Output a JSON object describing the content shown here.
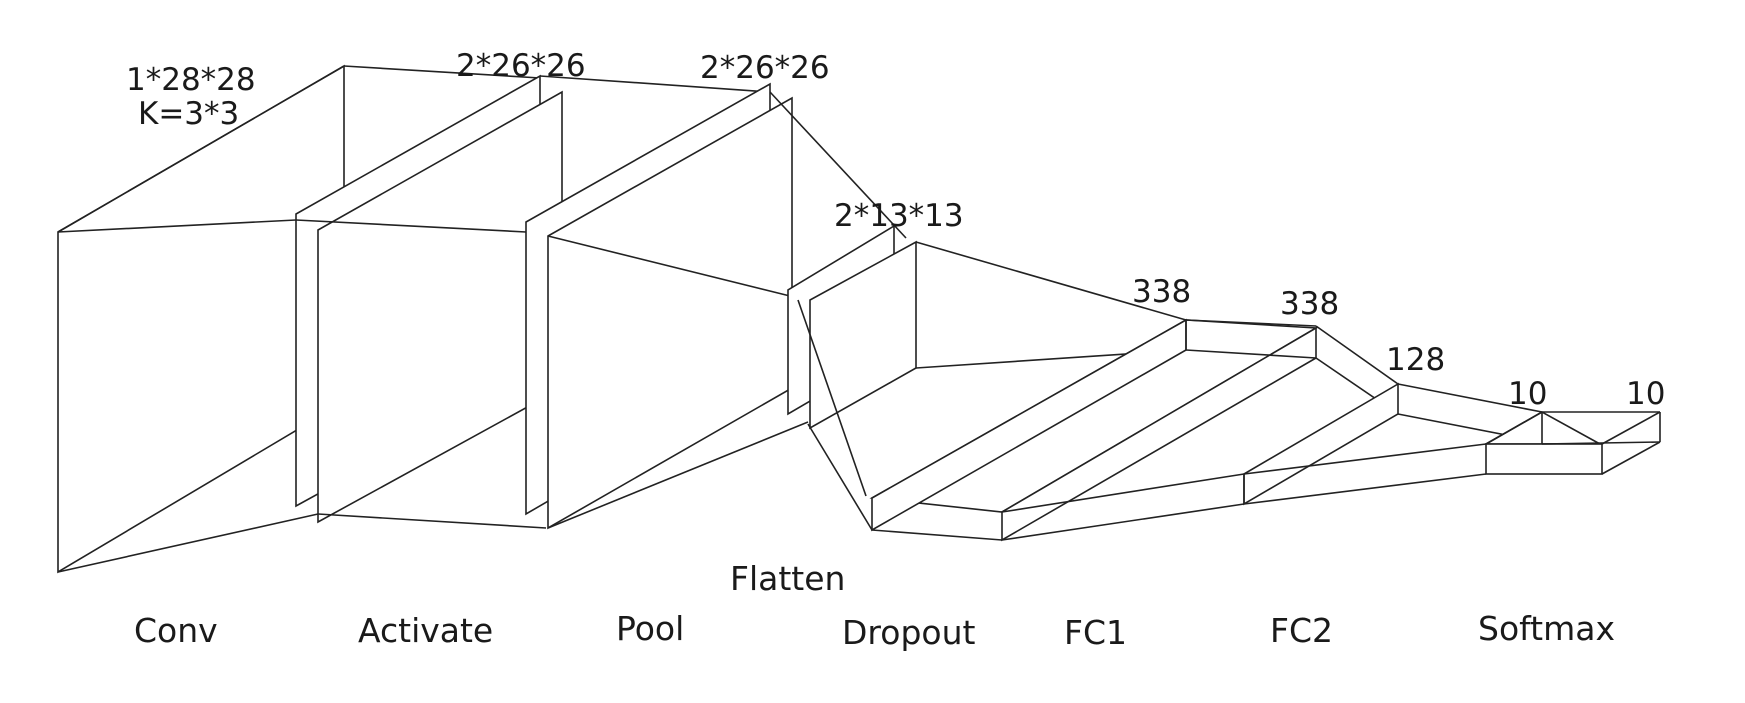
{
  "diagram": {
    "dims": {
      "conv_input": "1*28*28",
      "conv_kernel": "K=3*3",
      "activate": "2*26*26",
      "pool_in": "2*26*26",
      "pool_out": "2*13*13",
      "fc1": "338",
      "fc2": "338",
      "hidden": "128",
      "out1": "10",
      "out2": "10"
    },
    "stages": {
      "conv": "Conv",
      "activate": "Activate",
      "pool": "Pool",
      "flatten": "Flatten",
      "dropout": "Dropout",
      "fc1": "FC1",
      "fc2": "FC2",
      "softmax": "Softmax"
    },
    "stroke_color": "#222222",
    "background_color": "#ffffff"
  }
}
